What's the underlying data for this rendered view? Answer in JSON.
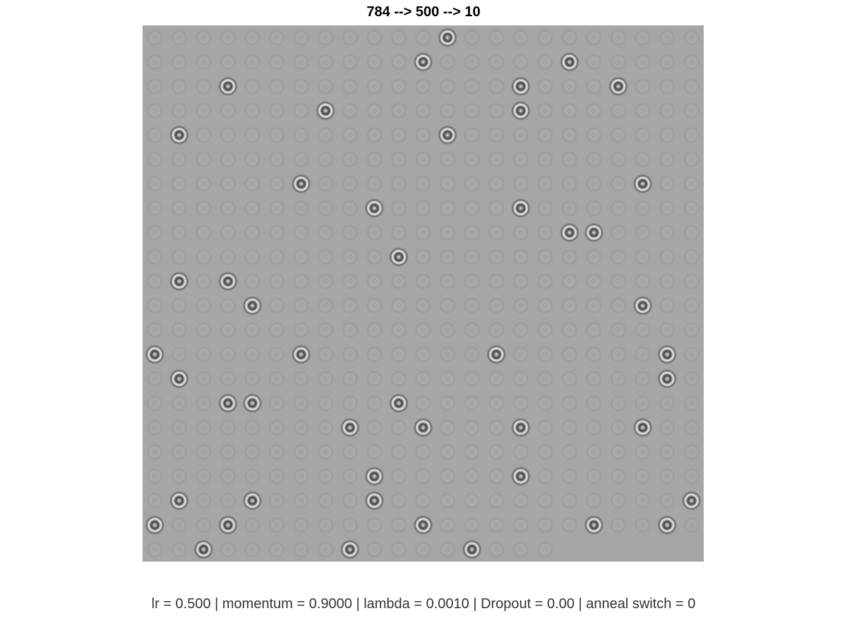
{
  "chart_data": {
    "type": "heatmap",
    "title": "784 --> 500 --> 10",
    "xlabel": "lr = 0.500 | momentum = 0.9000 | lambda = 0.0010 | Dropout = 0.00 | anneal switch = 0",
    "ylabel": "",
    "grid": false,
    "colormap": "gray",
    "tiles": {
      "columns": 23,
      "rows": 22,
      "count": 500
    },
    "highlighted_tiles": [
      [
        0,
        12
      ],
      [
        1,
        11
      ],
      [
        1,
        17
      ],
      [
        2,
        3
      ],
      [
        2,
        15
      ],
      [
        2,
        19
      ],
      [
        3,
        7
      ],
      [
        3,
        15
      ],
      [
        4,
        1
      ],
      [
        4,
        12
      ],
      [
        6,
        6
      ],
      [
        6,
        20
      ],
      [
        7,
        9
      ],
      [
        7,
        15
      ],
      [
        8,
        17
      ],
      [
        8,
        18
      ],
      [
        9,
        10
      ],
      [
        10,
        1
      ],
      [
        10,
        3
      ],
      [
        11,
        4
      ],
      [
        11,
        20
      ],
      [
        13,
        0
      ],
      [
        13,
        6
      ],
      [
        13,
        14
      ],
      [
        13,
        21
      ],
      [
        14,
        1
      ],
      [
        14,
        21
      ],
      [
        15,
        3
      ],
      [
        15,
        4
      ],
      [
        15,
        10
      ],
      [
        16,
        8
      ],
      [
        16,
        11
      ],
      [
        16,
        15
      ],
      [
        16,
        20
      ],
      [
        18,
        9
      ],
      [
        18,
        15
      ],
      [
        19,
        1
      ],
      [
        19,
        4
      ],
      [
        19,
        9
      ],
      [
        19,
        22
      ],
      [
        20,
        0
      ],
      [
        20,
        3
      ],
      [
        20,
        11
      ],
      [
        20,
        18
      ],
      [
        20,
        21
      ],
      [
        21,
        2
      ],
      [
        21,
        8
      ],
      [
        21,
        13
      ]
    ],
    "background_color": "#a6a6a6"
  }
}
